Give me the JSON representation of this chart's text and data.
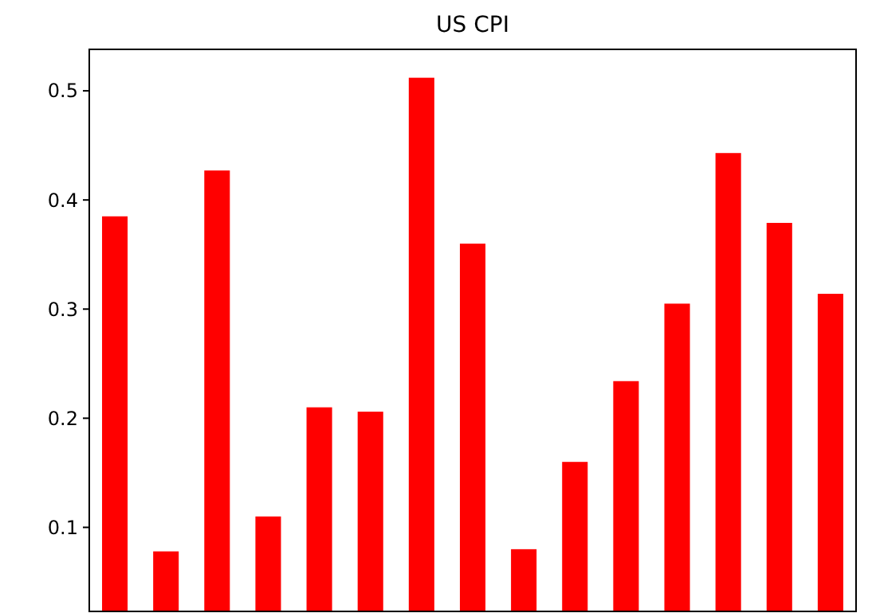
{
  "chart_data": {
    "type": "bar",
    "title": "US CPI",
    "categories": [
      null,
      null,
      null,
      null,
      null,
      null,
      null,
      null,
      null,
      null,
      null,
      null,
      null,
      null,
      null
    ],
    "values": [
      0.385,
      0.078,
      0.427,
      0.11,
      0.21,
      0.206,
      0.512,
      0.36,
      0.08,
      0.16,
      0.234,
      0.305,
      0.443,
      0.379,
      0.314
    ],
    "color": "#ff0000",
    "ylim": [
      0.023,
      0.538
    ],
    "yticks": [
      0.1,
      0.2,
      0.3,
      0.4,
      0.5
    ],
    "grid": false
  }
}
